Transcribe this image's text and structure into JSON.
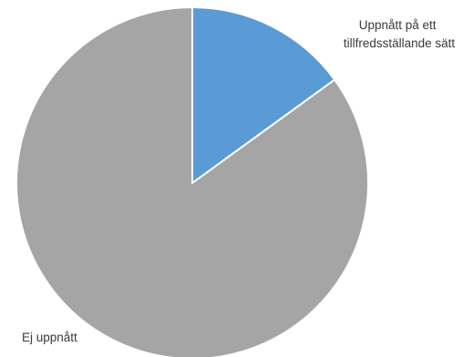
{
  "chart_data": {
    "type": "pie",
    "title": "",
    "slices": [
      {
        "label_lines": [
          "Uppnått på ett",
          "tillfredsställande sätt"
        ],
        "value": 15,
        "color": "#5b9bd5"
      },
      {
        "label_lines": [
          "Ej uppnått"
        ],
        "value": 85,
        "color": "#a5a5a5"
      }
    ],
    "start_angle": "12 o'clock",
    "direction": "clockwise",
    "legend": "none"
  }
}
